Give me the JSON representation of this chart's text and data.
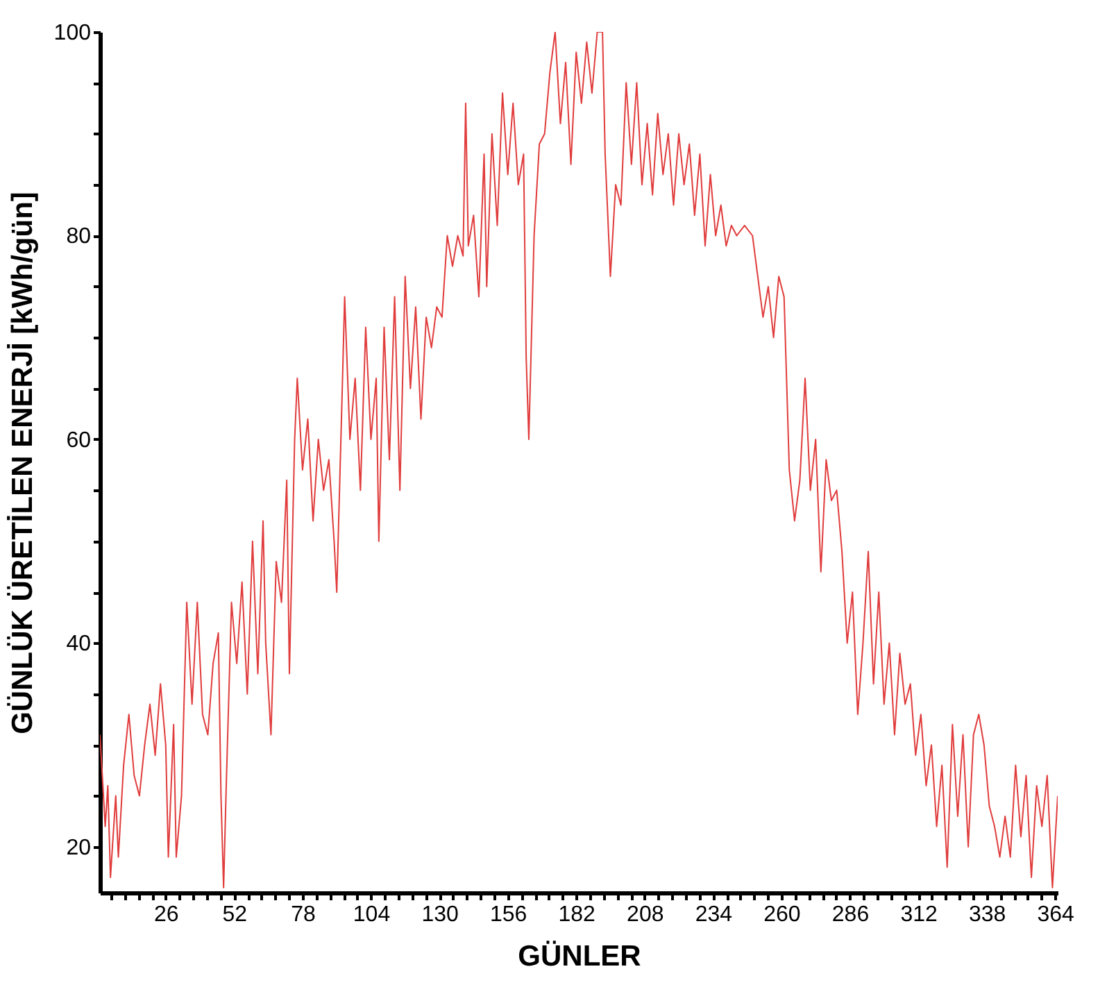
{
  "chart_data": {
    "type": "line",
    "xlabel": "GÜNLER",
    "ylabel": "GÜNLÜK ÜRETİLEN ENERJİ [kWh/gün]",
    "xlim": [
      1,
      365
    ],
    "ylim": [
      15.5,
      100
    ],
    "xticks": [
      26,
      52,
      78,
      104,
      130,
      156,
      182,
      208,
      234,
      260,
      286,
      312,
      338,
      364,
      {
        "value": 5.2,
        "label": null
      },
      {
        "value": 10.4,
        "label": null
      },
      {
        "value": 15.6,
        "label": null
      },
      {
        "value": 20.8,
        "label": null
      },
      {
        "value": 31.2,
        "label": null
      },
      {
        "value": 36.4,
        "label": null
      },
      {
        "value": 41.6,
        "label": null
      },
      {
        "value": 46.8,
        "label": null
      },
      {
        "value": 57.2,
        "label": null
      },
      {
        "value": 62.4,
        "label": null
      },
      {
        "value": 67.6,
        "label": null
      },
      {
        "value": 72.8,
        "label": null
      },
      {
        "value": 83.2,
        "label": null
      },
      {
        "value": 88.4,
        "label": null
      },
      {
        "value": 93.6,
        "label": null
      },
      {
        "value": 98.8,
        "label": null
      },
      {
        "value": 109.2,
        "label": null
      },
      {
        "value": 114.4,
        "label": null
      },
      {
        "value": 119.6,
        "label": null
      },
      {
        "value": 124.8,
        "label": null
      },
      {
        "value": 135.2,
        "label": null
      },
      {
        "value": 140.4,
        "label": null
      },
      {
        "value": 145.6,
        "label": null
      },
      {
        "value": 150.8,
        "label": null
      },
      {
        "value": 161.2,
        "label": null
      },
      {
        "value": 166.4,
        "label": null
      },
      {
        "value": 171.6,
        "label": null
      },
      {
        "value": 176.8,
        "label": null
      },
      {
        "value": 187.2,
        "label": null
      },
      {
        "value": 192.4,
        "label": null
      },
      {
        "value": 197.6,
        "label": null
      },
      {
        "value": 202.8,
        "label": null
      },
      {
        "value": 213.2,
        "label": null
      },
      {
        "value": 218.4,
        "label": null
      },
      {
        "value": 223.6,
        "label": null
      },
      {
        "value": 228.8,
        "label": null
      },
      {
        "value": 239.2,
        "label": null
      },
      {
        "value": 244.4,
        "label": null
      },
      {
        "value": 249.6,
        "label": null
      },
      {
        "value": 254.8,
        "label": null
      },
      {
        "value": 265.2,
        "label": null
      },
      {
        "value": 270.4,
        "label": null
      },
      {
        "value": 275.6,
        "label": null
      },
      {
        "value": 280.8,
        "label": null
      },
      {
        "value": 291.2,
        "label": null
      },
      {
        "value": 296.4,
        "label": null
      },
      {
        "value": 301.6,
        "label": null
      },
      {
        "value": 306.8,
        "label": null
      },
      {
        "value": 317.2,
        "label": null
      },
      {
        "value": 322.4,
        "label": null
      },
      {
        "value": 327.6,
        "label": null
      },
      {
        "value": 332.8,
        "label": null
      },
      {
        "value": 343.2,
        "label": null
      },
      {
        "value": 348.4,
        "label": null
      },
      {
        "value": 353.6,
        "label": null
      },
      {
        "value": 358.8,
        "label": null
      }
    ],
    "yticks": [
      20,
      40,
      60,
      80,
      100,
      {
        "value": 25,
        "label": null
      },
      {
        "value": 30,
        "label": null
      },
      {
        "value": 35,
        "label": null
      },
      {
        "value": 45,
        "label": null
      },
      {
        "value": 50,
        "label": null
      },
      {
        "value": 55,
        "label": null
      },
      {
        "value": 65,
        "label": null
      },
      {
        "value": 70,
        "label": null
      },
      {
        "value": 75,
        "label": null
      },
      {
        "value": 85,
        "label": null
      },
      {
        "value": 90,
        "label": null
      },
      {
        "value": 95,
        "label": null
      }
    ],
    "grid": false,
    "series": [
      {
        "color": "#e03c3c",
        "line_style": "solid",
        "marker": "none",
        "x": [
          1,
          3,
          4,
          5,
          7,
          8,
          10,
          12,
          14,
          16,
          18,
          20,
          22,
          24,
          26,
          27,
          29,
          30,
          32,
          34,
          36,
          38,
          40,
          42,
          44,
          46,
          47,
          48,
          49,
          51,
          53,
          55,
          57,
          59,
          61,
          63,
          64,
          66,
          68,
          70,
          72,
          73,
          75,
          76,
          78,
          80,
          82,
          84,
          86,
          88,
          90,
          91,
          93,
          94,
          96,
          98,
          100,
          102,
          104,
          106,
          107,
          109,
          111,
          113,
          115,
          117,
          119,
          121,
          123,
          125,
          127,
          129,
          131,
          133,
          135,
          137,
          139,
          140,
          141,
          143,
          145,
          147,
          148,
          150,
          152,
          154,
          156,
          158,
          160,
          162,
          163,
          164,
          166,
          168,
          170,
          172,
          174,
          176,
          178,
          180,
          182,
          184,
          186,
          188,
          190,
          192,
          193,
          195,
          197,
          199,
          201,
          203,
          205,
          207,
          209,
          211,
          213,
          215,
          217,
          219,
          221,
          223,
          225,
          227,
          229,
          231,
          233,
          235,
          237,
          239,
          241,
          243,
          246,
          249,
          251,
          253,
          255,
          257,
          259,
          261,
          263,
          265,
          267,
          269,
          271,
          273,
          275,
          277,
          279,
          281,
          283,
          285,
          287,
          289,
          291,
          293,
          295,
          297,
          299,
          301,
          303,
          305,
          307,
          309,
          311,
          313,
          315,
          317,
          319,
          321,
          323,
          325,
          327,
          329,
          331,
          333,
          335,
          337,
          339,
          341,
          343,
          345,
          347,
          349,
          351,
          353,
          355,
          357,
          359,
          361,
          363,
          365
        ],
        "values": [
          31,
          22,
          26,
          17,
          25,
          19,
          28,
          33,
          27,
          25,
          30,
          34,
          29,
          36,
          30,
          19,
          32,
          19,
          25,
          44,
          34,
          44,
          33,
          31,
          38,
          41,
          25,
          16,
          26,
          44,
          38,
          46,
          35,
          50,
          37,
          52,
          40,
          31,
          48,
          44,
          56,
          37,
          60,
          66,
          57,
          62,
          52,
          60,
          55,
          58,
          50,
          45,
          64,
          74,
          60,
          66,
          55,
          71,
          60,
          66,
          50,
          71,
          58,
          74,
          55,
          76,
          65,
          73,
          62,
          72,
          69,
          73,
          72,
          80,
          77,
          80,
          78,
          93,
          79,
          82,
          74,
          88,
          75,
          90,
          81,
          94,
          86,
          93,
          85,
          88,
          68,
          60,
          80,
          89,
          90,
          96,
          100,
          91,
          97,
          87,
          98,
          93,
          99,
          94,
          100,
          100,
          88,
          76,
          85,
          83,
          95,
          87,
          95,
          85,
          91,
          84,
          92,
          86,
          90,
          83,
          90,
          85,
          89,
          82,
          88,
          79,
          86,
          80,
          83,
          79,
          81,
          80,
          81,
          80,
          76,
          72,
          75,
          70,
          76,
          74,
          57,
          52,
          56,
          66,
          55,
          60,
          47,
          58,
          54,
          55,
          49,
          40,
          45,
          33,
          40,
          49,
          36,
          45,
          34,
          40,
          31,
          39,
          34,
          36,
          29,
          33,
          26,
          30,
          22,
          28,
          18,
          32,
          23,
          31,
          20,
          31,
          33,
          30,
          24,
          22,
          19,
          23,
          19,
          28,
          21,
          27,
          17,
          26,
          22,
          27,
          16,
          25
        ]
      }
    ]
  }
}
